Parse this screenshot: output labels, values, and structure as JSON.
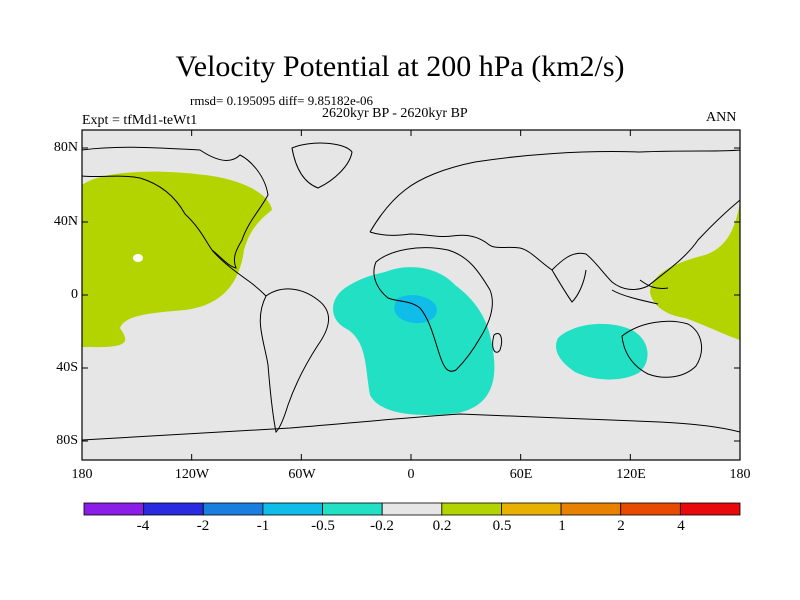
{
  "header": {
    "title": "Velocity Potential at 200 hPa (km2/s)",
    "stats": "rmsd= 0.195095  diff= 9.85182e-06",
    "period": "2620kyr BP - 2620kyr BP",
    "experiment": "Expt = tfMd1-teWt1",
    "season": "ANN"
  },
  "axes": {
    "lat_labels": [
      "80N",
      "40N",
      "0",
      "40S",
      "80S"
    ],
    "lon_labels": [
      "180",
      "120W",
      "60W",
      "0",
      "60E",
      "120E",
      "180"
    ]
  },
  "colorbar": {
    "labels": [
      "-4",
      "-2",
      "-1",
      "-0.5",
      "-0.2",
      "0.2",
      "0.5",
      "1",
      "2",
      "4"
    ],
    "colors": [
      "#8a1ee8",
      "#2a2ae0",
      "#1a7ee0",
      "#10bce8",
      "#22e0c4",
      "#e6e6e6",
      "#b4d400",
      "#e8b000",
      "#e88000",
      "#e84a00",
      "#e80a0a"
    ]
  },
  "map": {
    "background_color": "#e6e6e6",
    "positive_color": "#b4d400",
    "negative_color": "#22e0c4",
    "strong_negative_color": "#10bce8"
  }
}
